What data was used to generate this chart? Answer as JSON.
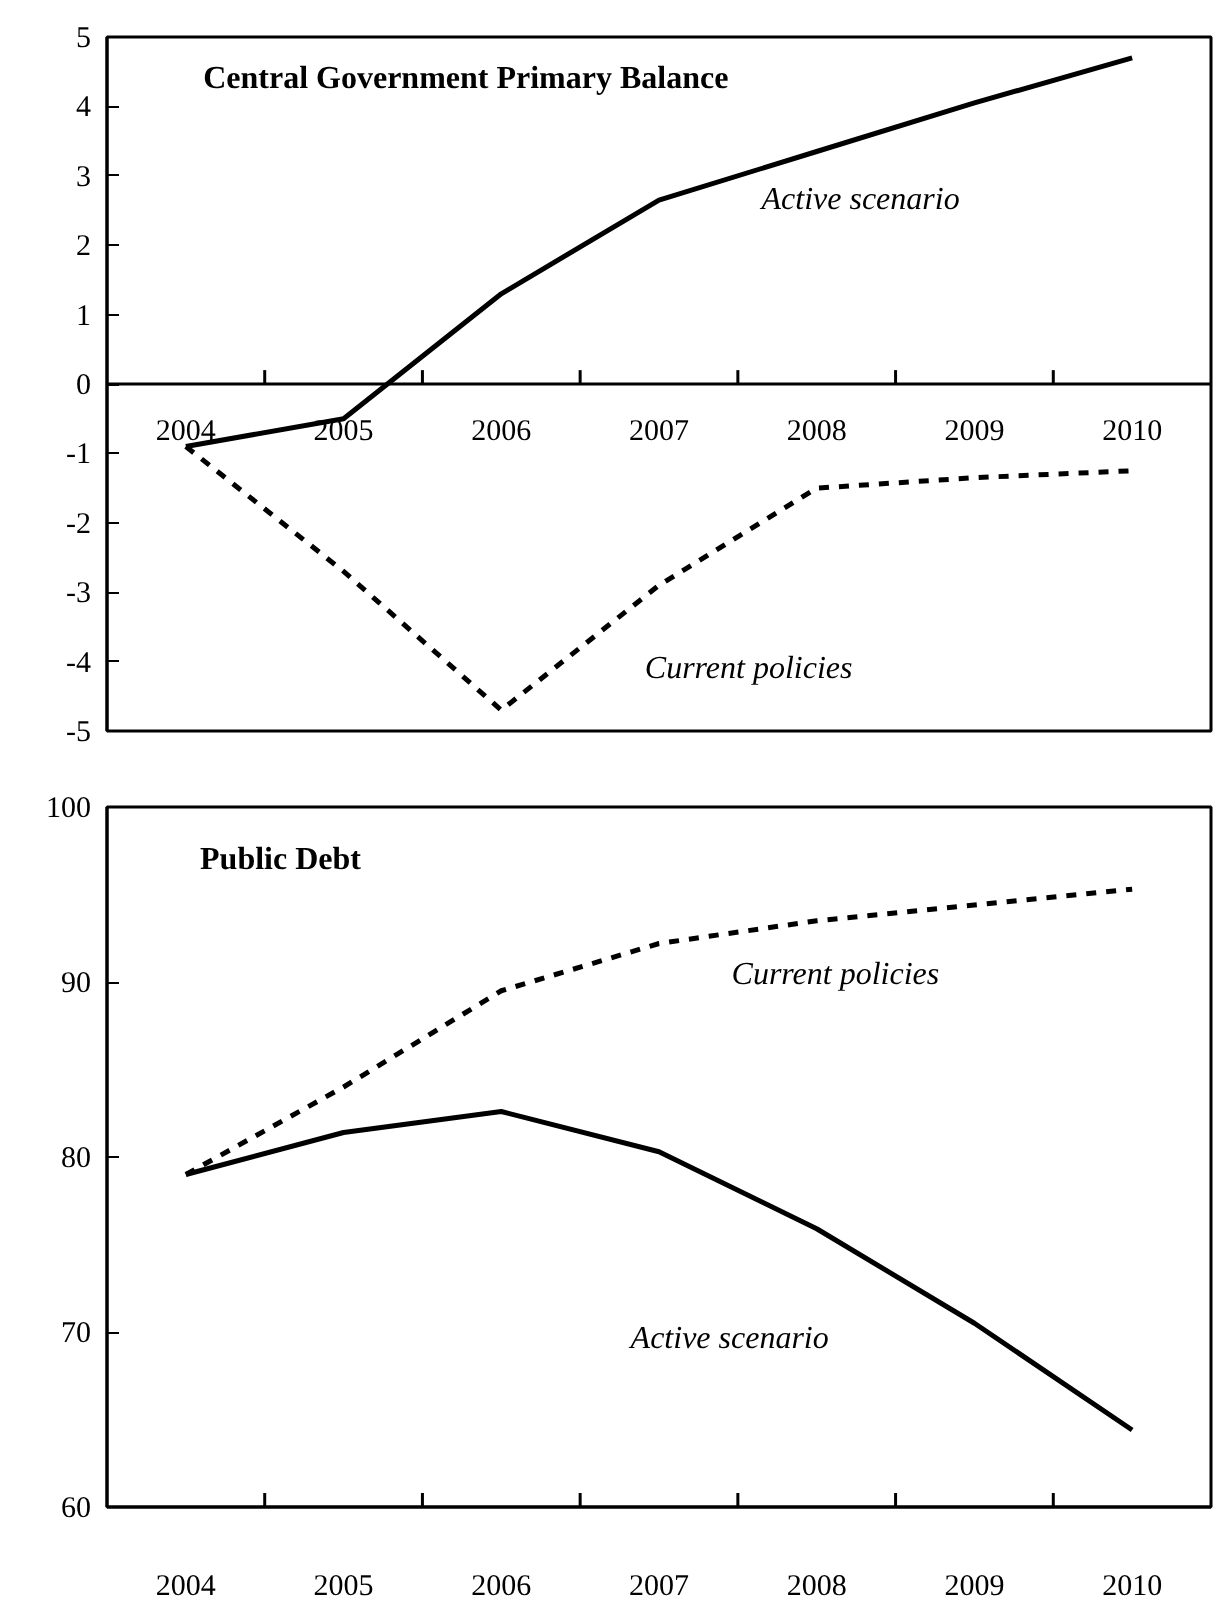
{
  "chart_data": [
    {
      "type": "line",
      "title": "Central Government Primary Balance",
      "categories": [
        "2004",
        "2005",
        "2006",
        "2007",
        "2008",
        "2009",
        "2010"
      ],
      "ylim": [
        -5,
        5
      ],
      "yticks": [
        -5,
        -4,
        -3,
        -2,
        -1,
        0,
        1,
        2,
        3,
        4,
        5
      ],
      "grid": false,
      "series": [
        {
          "name": "Active scenario",
          "color": "#000000",
          "line_style": "solid",
          "values": [
            -0.9,
            -0.5,
            1.3,
            2.65,
            3.35,
            4.05,
            4.7
          ]
        },
        {
          "name": "Current policies",
          "color": "#000000",
          "line_style": "dashed",
          "values": [
            -0.9,
            -2.7,
            -4.7,
            -2.9,
            -1.5,
            -1.35,
            -1.25
          ]
        }
      ]
    },
    {
      "type": "line",
      "title": "Public Debt",
      "categories": [
        "2004",
        "2005",
        "2006",
        "2007",
        "2008",
        "2009",
        "2010"
      ],
      "ylim": [
        60,
        100
      ],
      "yticks": [
        60,
        70,
        80,
        90,
        100
      ],
      "grid": false,
      "series": [
        {
          "name": "Current policies",
          "color": "#000000",
          "line_style": "dashed",
          "values": [
            79,
            84,
            89.5,
            92.2,
            93.5,
            94.4,
            95.3
          ]
        },
        {
          "name": "Active scenario",
          "color": "#000000",
          "line_style": "solid",
          "values": [
            79,
            81.4,
            82.6,
            80.3,
            75.9,
            70.5,
            64.4
          ]
        }
      ]
    }
  ]
}
